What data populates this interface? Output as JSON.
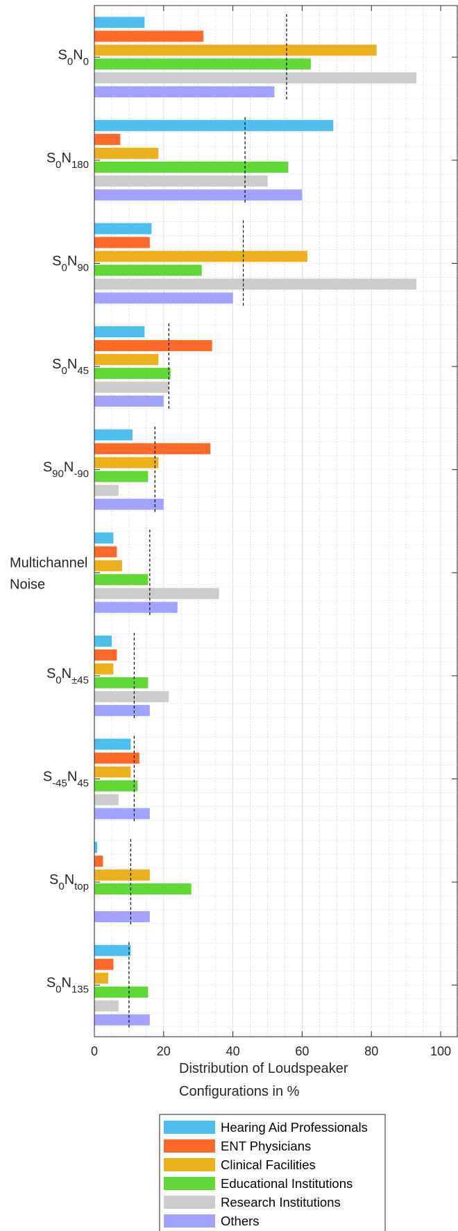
{
  "chart_data": {
    "type": "bar",
    "orientation": "horizontal",
    "categories": [
      {
        "base": "S",
        "sub1": "0",
        "mid": "N",
        "sub2": "0"
      },
      {
        "base": "S",
        "sub1": "0",
        "mid": "N",
        "sub2": "180"
      },
      {
        "base": "S",
        "sub1": "0",
        "mid": "N",
        "sub2": "90"
      },
      {
        "base": "S",
        "sub1": "0",
        "mid": "N",
        "sub2": "45"
      },
      {
        "base": "S",
        "sub1": "90",
        "mid": "N",
        "sub2": "-90"
      },
      {
        "plain": [
          "Multichannel",
          "Noise"
        ]
      },
      {
        "base": "S",
        "sub1": "0",
        "mid": "N",
        "sub2": "±45"
      },
      {
        "base": "S",
        "sub1": "-45",
        "mid": "N",
        "sub2": "45"
      },
      {
        "base": "S",
        "sub1": "0",
        "mid": "N",
        "sub2": "top"
      },
      {
        "base": "S",
        "sub1": "0",
        "mid": "N",
        "sub2": "135"
      }
    ],
    "series": [
      {
        "name": "Hearing Aid Professionals",
        "color": "#4DBEEE",
        "values": [
          14.5,
          69,
          16.5,
          14.5,
          11,
          5.5,
          5,
          10.5,
          0.8,
          10.5
        ]
      },
      {
        "name": "ENT Physicians",
        "color": "#FF6929",
        "values": [
          31.5,
          7.5,
          16,
          34,
          33.5,
          6.5,
          6.5,
          13,
          2.5,
          5.5
        ]
      },
      {
        "name": "Clinical Facilities",
        "color": "#EDB120",
        "values": [
          81.5,
          18.5,
          61.5,
          18.5,
          18.5,
          8,
          5.5,
          10.5,
          16,
          4
        ]
      },
      {
        "name": "Educational Institutions",
        "color": "#61D836",
        "values": [
          62.5,
          56,
          31,
          22,
          15.5,
          15.5,
          15.5,
          12.5,
          28,
          15.5
        ]
      },
      {
        "name": "Research Institutions",
        "color": "#CCCCCC",
        "values": [
          93,
          50,
          93,
          21.5,
          7,
          36,
          21.5,
          7,
          0,
          7
        ]
      },
      {
        "name": "Others",
        "color": "#A3A3FF",
        "values": [
          52,
          60,
          40,
          20,
          20,
          24,
          16,
          16,
          16,
          16
        ]
      }
    ],
    "mean_lines": [
      55.5,
      43.5,
      43,
      21.5,
      17.5,
      16,
      11.5,
      11.5,
      10.5,
      10
    ],
    "xlim": [
      0,
      105
    ],
    "xticks": [
      0,
      20,
      40,
      60,
      80,
      100
    ],
    "xlabel_lines": [
      "Distribution of Loudspeaker",
      "Configurations in %"
    ],
    "grid": true,
    "legend": "bottom"
  }
}
